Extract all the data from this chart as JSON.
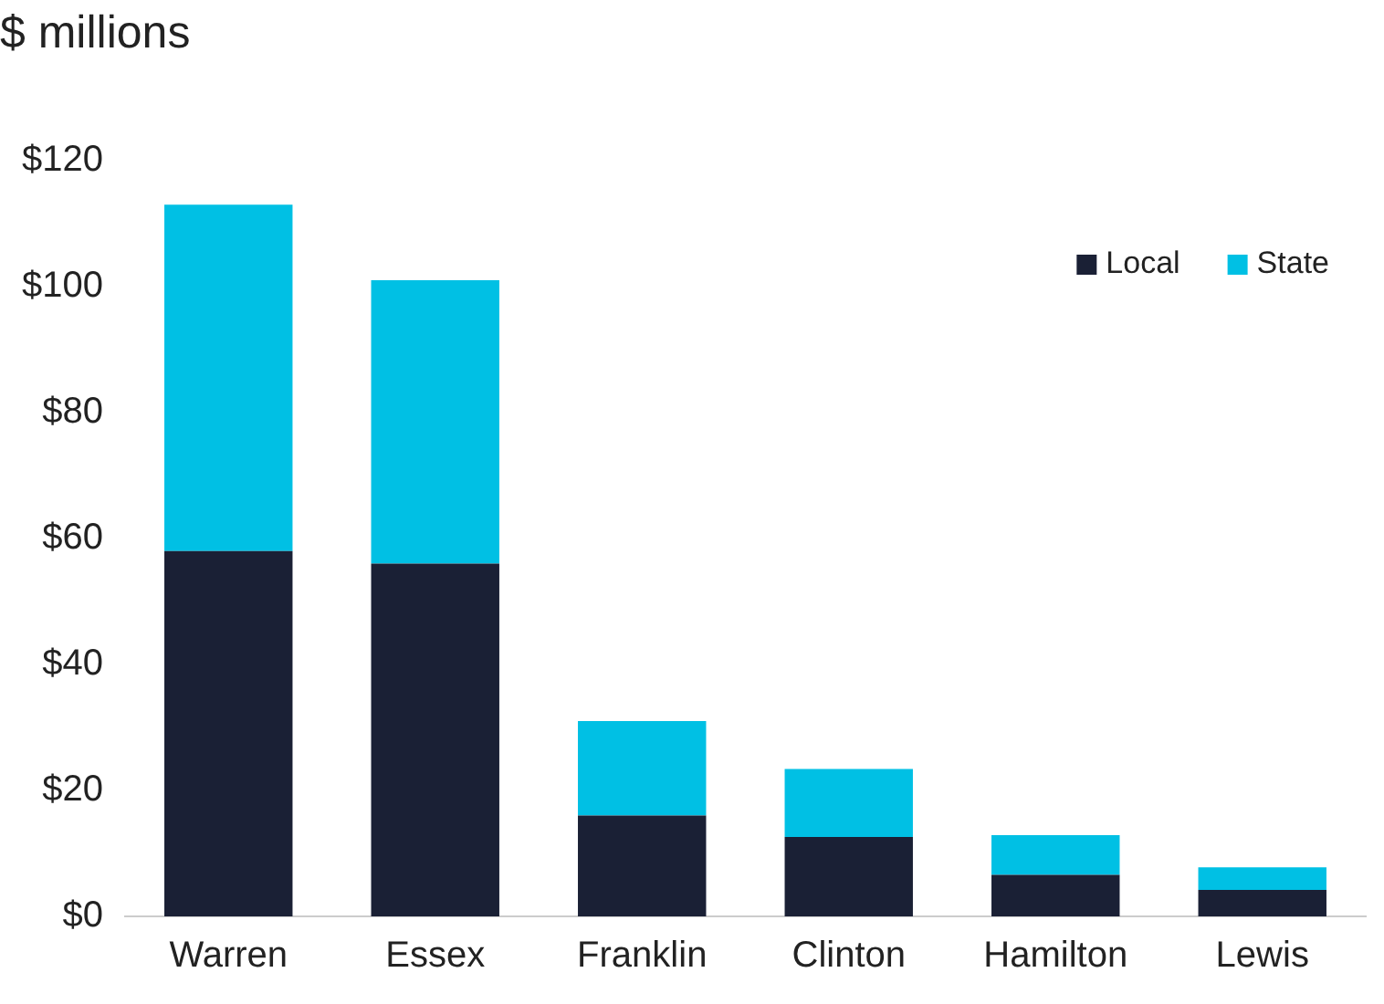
{
  "chart_data": {
    "type": "bar",
    "title": "$ millions",
    "categories": [
      "Warren",
      "Essex",
      "Franklin",
      "Clinton",
      "Hamilton",
      "Lewis"
    ],
    "stacked": true,
    "series": [
      {
        "name": "Local",
        "color": "#1a2035",
        "values": [
          58,
          56,
          16,
          12.6,
          6.6,
          4.2
        ]
      },
      {
        "name": "State",
        "color": "#00c0e4",
        "values": [
          55,
          45,
          15,
          10.8,
          6.3,
          3.6
        ]
      }
    ],
    "ylim": [
      0,
      120
    ],
    "yticks": [
      {
        "value": 0,
        "label": "$0"
      },
      {
        "value": 20,
        "label": "$20"
      },
      {
        "value": 40,
        "label": "$40"
      },
      {
        "value": 60,
        "label": "$60"
      },
      {
        "value": 80,
        "label": "$80"
      },
      {
        "value": 100,
        "label": "$100"
      },
      {
        "value": 120,
        "label": "$120"
      }
    ],
    "grid": false,
    "legend": "top right"
  }
}
